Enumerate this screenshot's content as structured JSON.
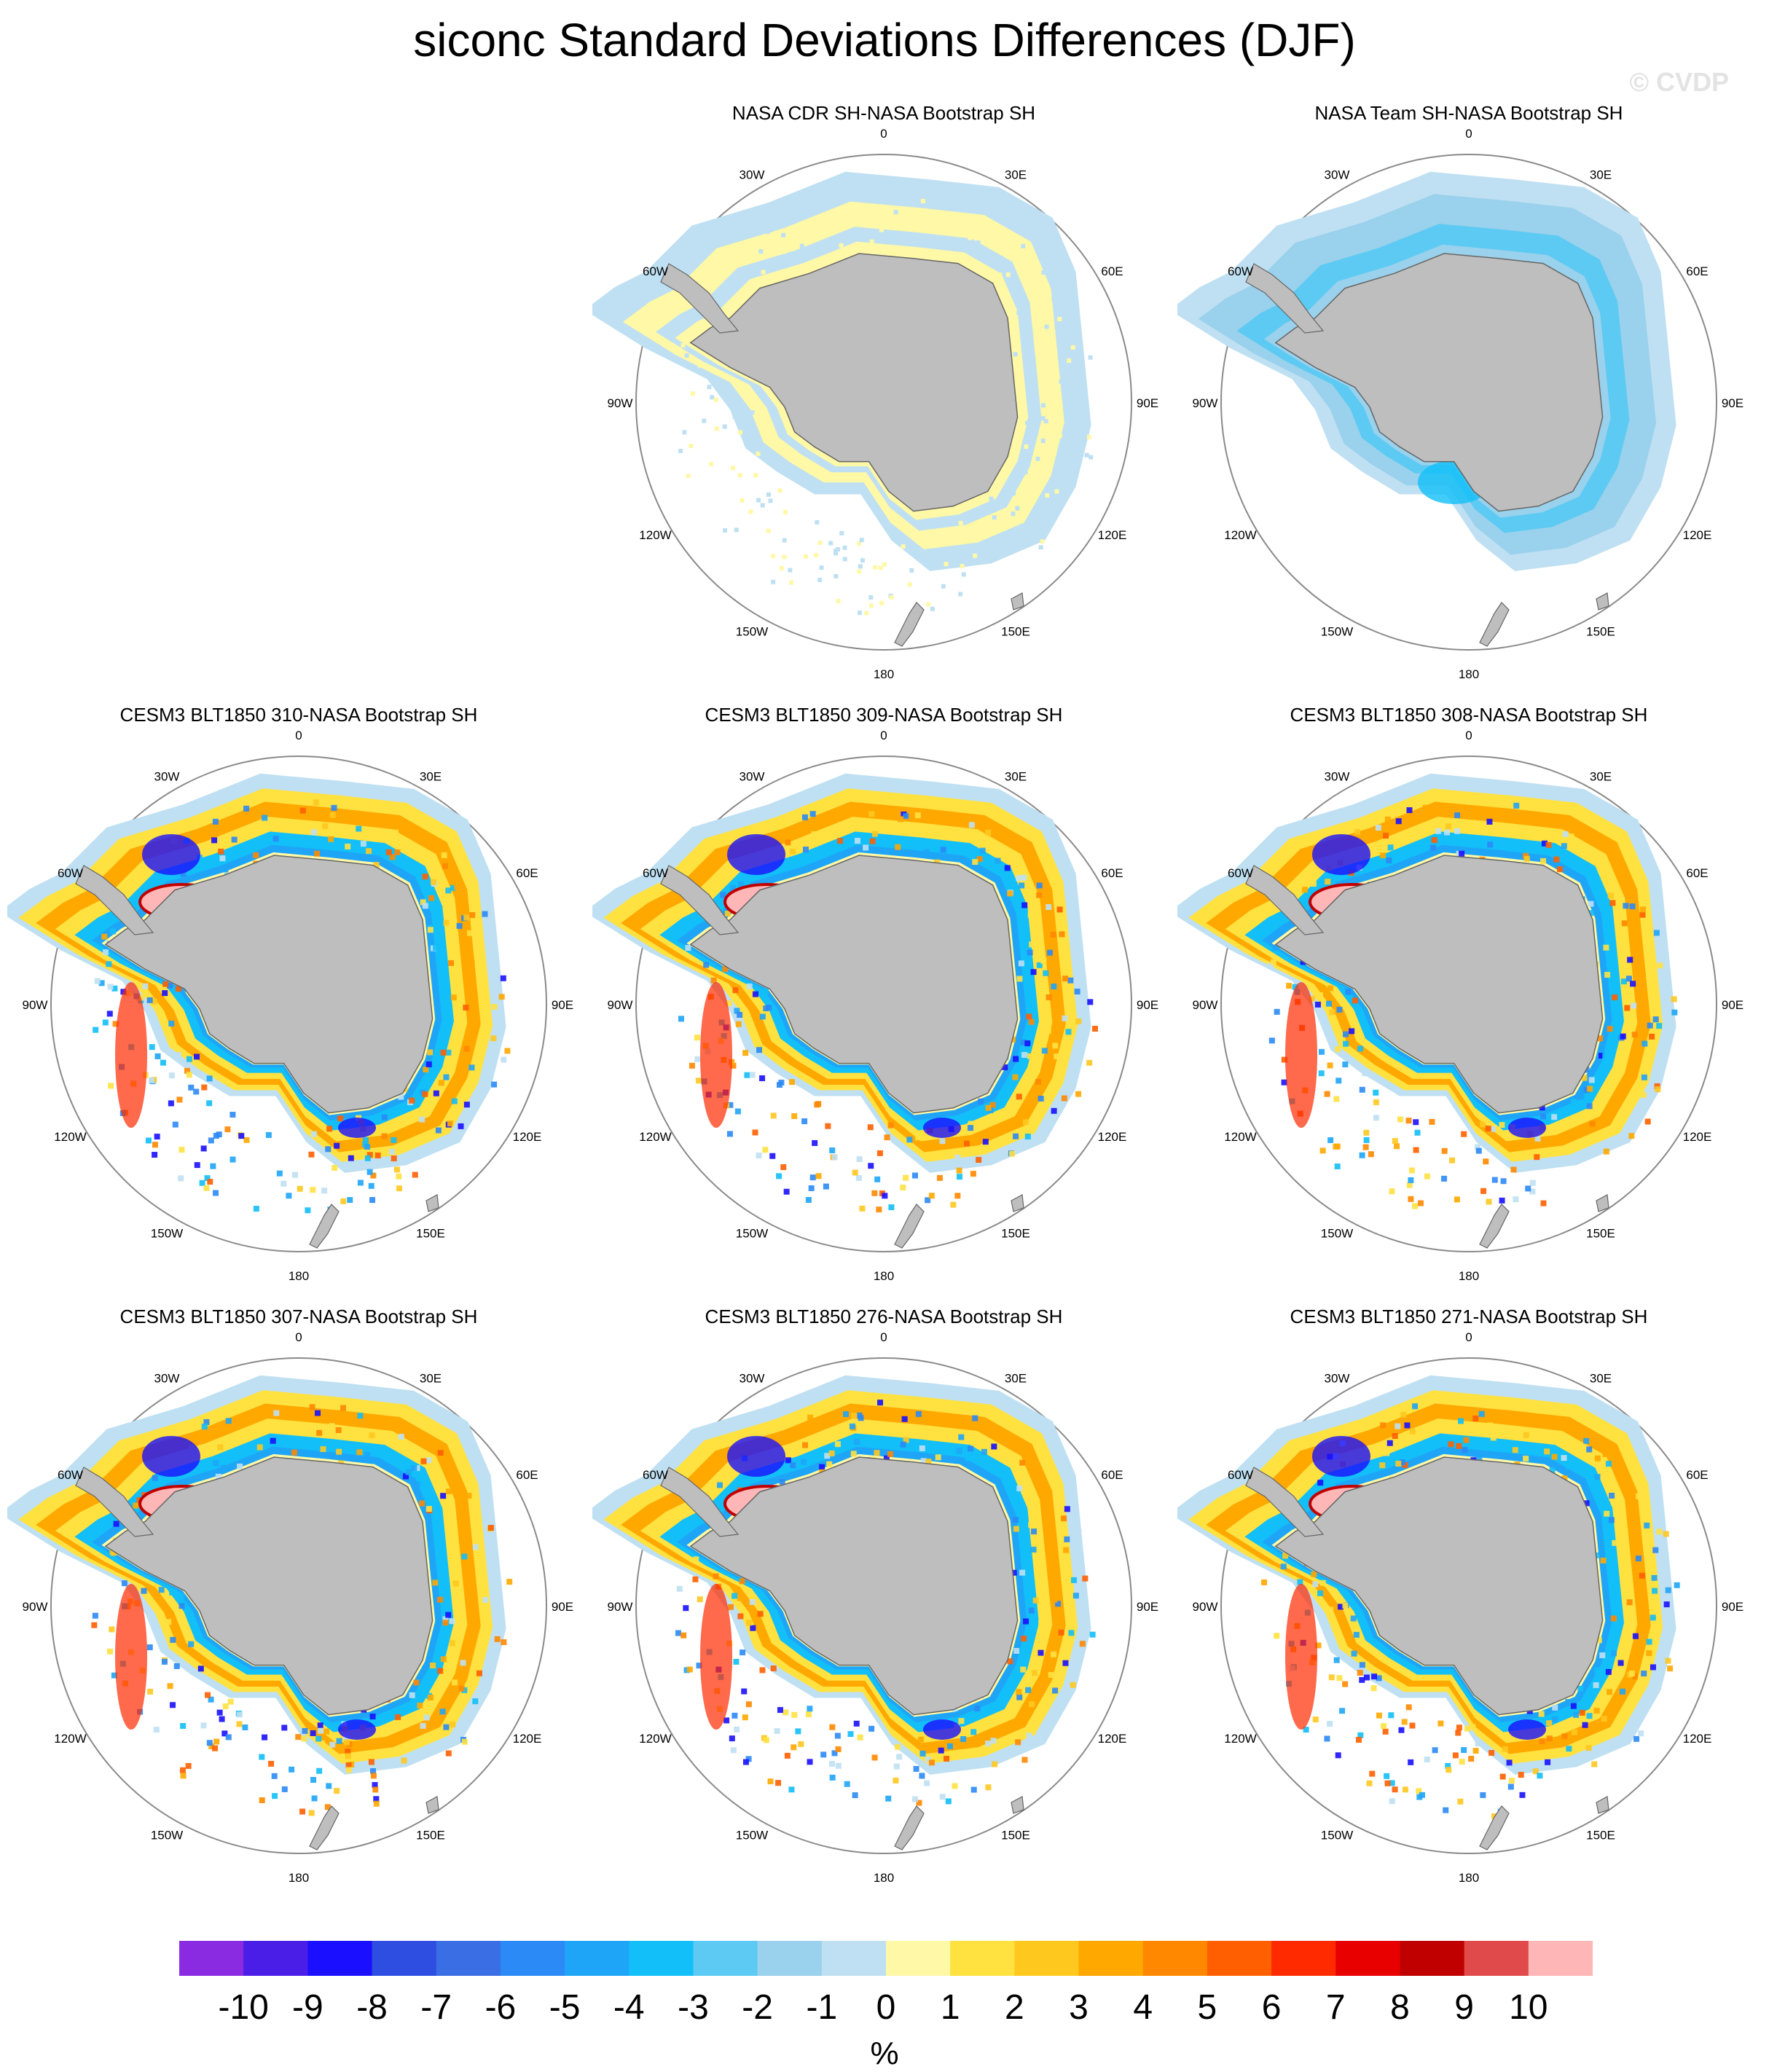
{
  "title": "siconc Standard Deviations Differences (DJF)",
  "watermark": "© CVDP",
  "lon_labels": [
    "0",
    "30E",
    "60E",
    "90E",
    "120E",
    "150E",
    "180",
    "150W",
    "120W",
    "90W",
    "60W",
    "30W"
  ],
  "panels": [
    {
      "title": "NASA CDR SH-NASA Bootstrap SH",
      "pattern": "obs-cdr"
    },
    {
      "title": "NASA Team SH-NASA Bootstrap SH",
      "pattern": "obs-team"
    },
    {
      "title": "CESM3 BLT1850 310-NASA Bootstrap SH",
      "pattern": "model"
    },
    {
      "title": "CESM3 BLT1850 309-NASA Bootstrap SH",
      "pattern": "model"
    },
    {
      "title": "CESM3 BLT1850 308-NASA Bootstrap SH",
      "pattern": "model"
    },
    {
      "title": "CESM3 BLT1850 307-NASA Bootstrap SH",
      "pattern": "model"
    },
    {
      "title": "CESM3 BLT1850 276-NASA Bootstrap SH",
      "pattern": "model"
    },
    {
      "title": "CESM3 BLT1850 271-NASA Bootstrap SH",
      "pattern": "model"
    }
  ],
  "colorbar": {
    "labels": [
      "-10",
      "-9",
      "-8",
      "-7",
      "-6",
      "-5",
      "-4",
      "-3",
      "-2",
      "-1",
      "0",
      "1",
      "2",
      "3",
      "4",
      "5",
      "6",
      "7",
      "8",
      "9",
      "10"
    ],
    "colors": [
      "#8a2be2",
      "#4b1ee8",
      "#1a10ff",
      "#2d4ee0",
      "#3a6ee4",
      "#2b8af5",
      "#1fa5f7",
      "#12bff8",
      "#5ccaf2",
      "#9ad1ec",
      "#bfe0f2",
      "#fff8a6",
      "#ffe140",
      "#ffc81f",
      "#ffa800",
      "#ff8800",
      "#ff5f00",
      "#ff2a00",
      "#e80000",
      "#c00000",
      "#e04a4a",
      "#ffb6b6"
    ],
    "unit": "%"
  },
  "land_color": "#bebebe"
}
